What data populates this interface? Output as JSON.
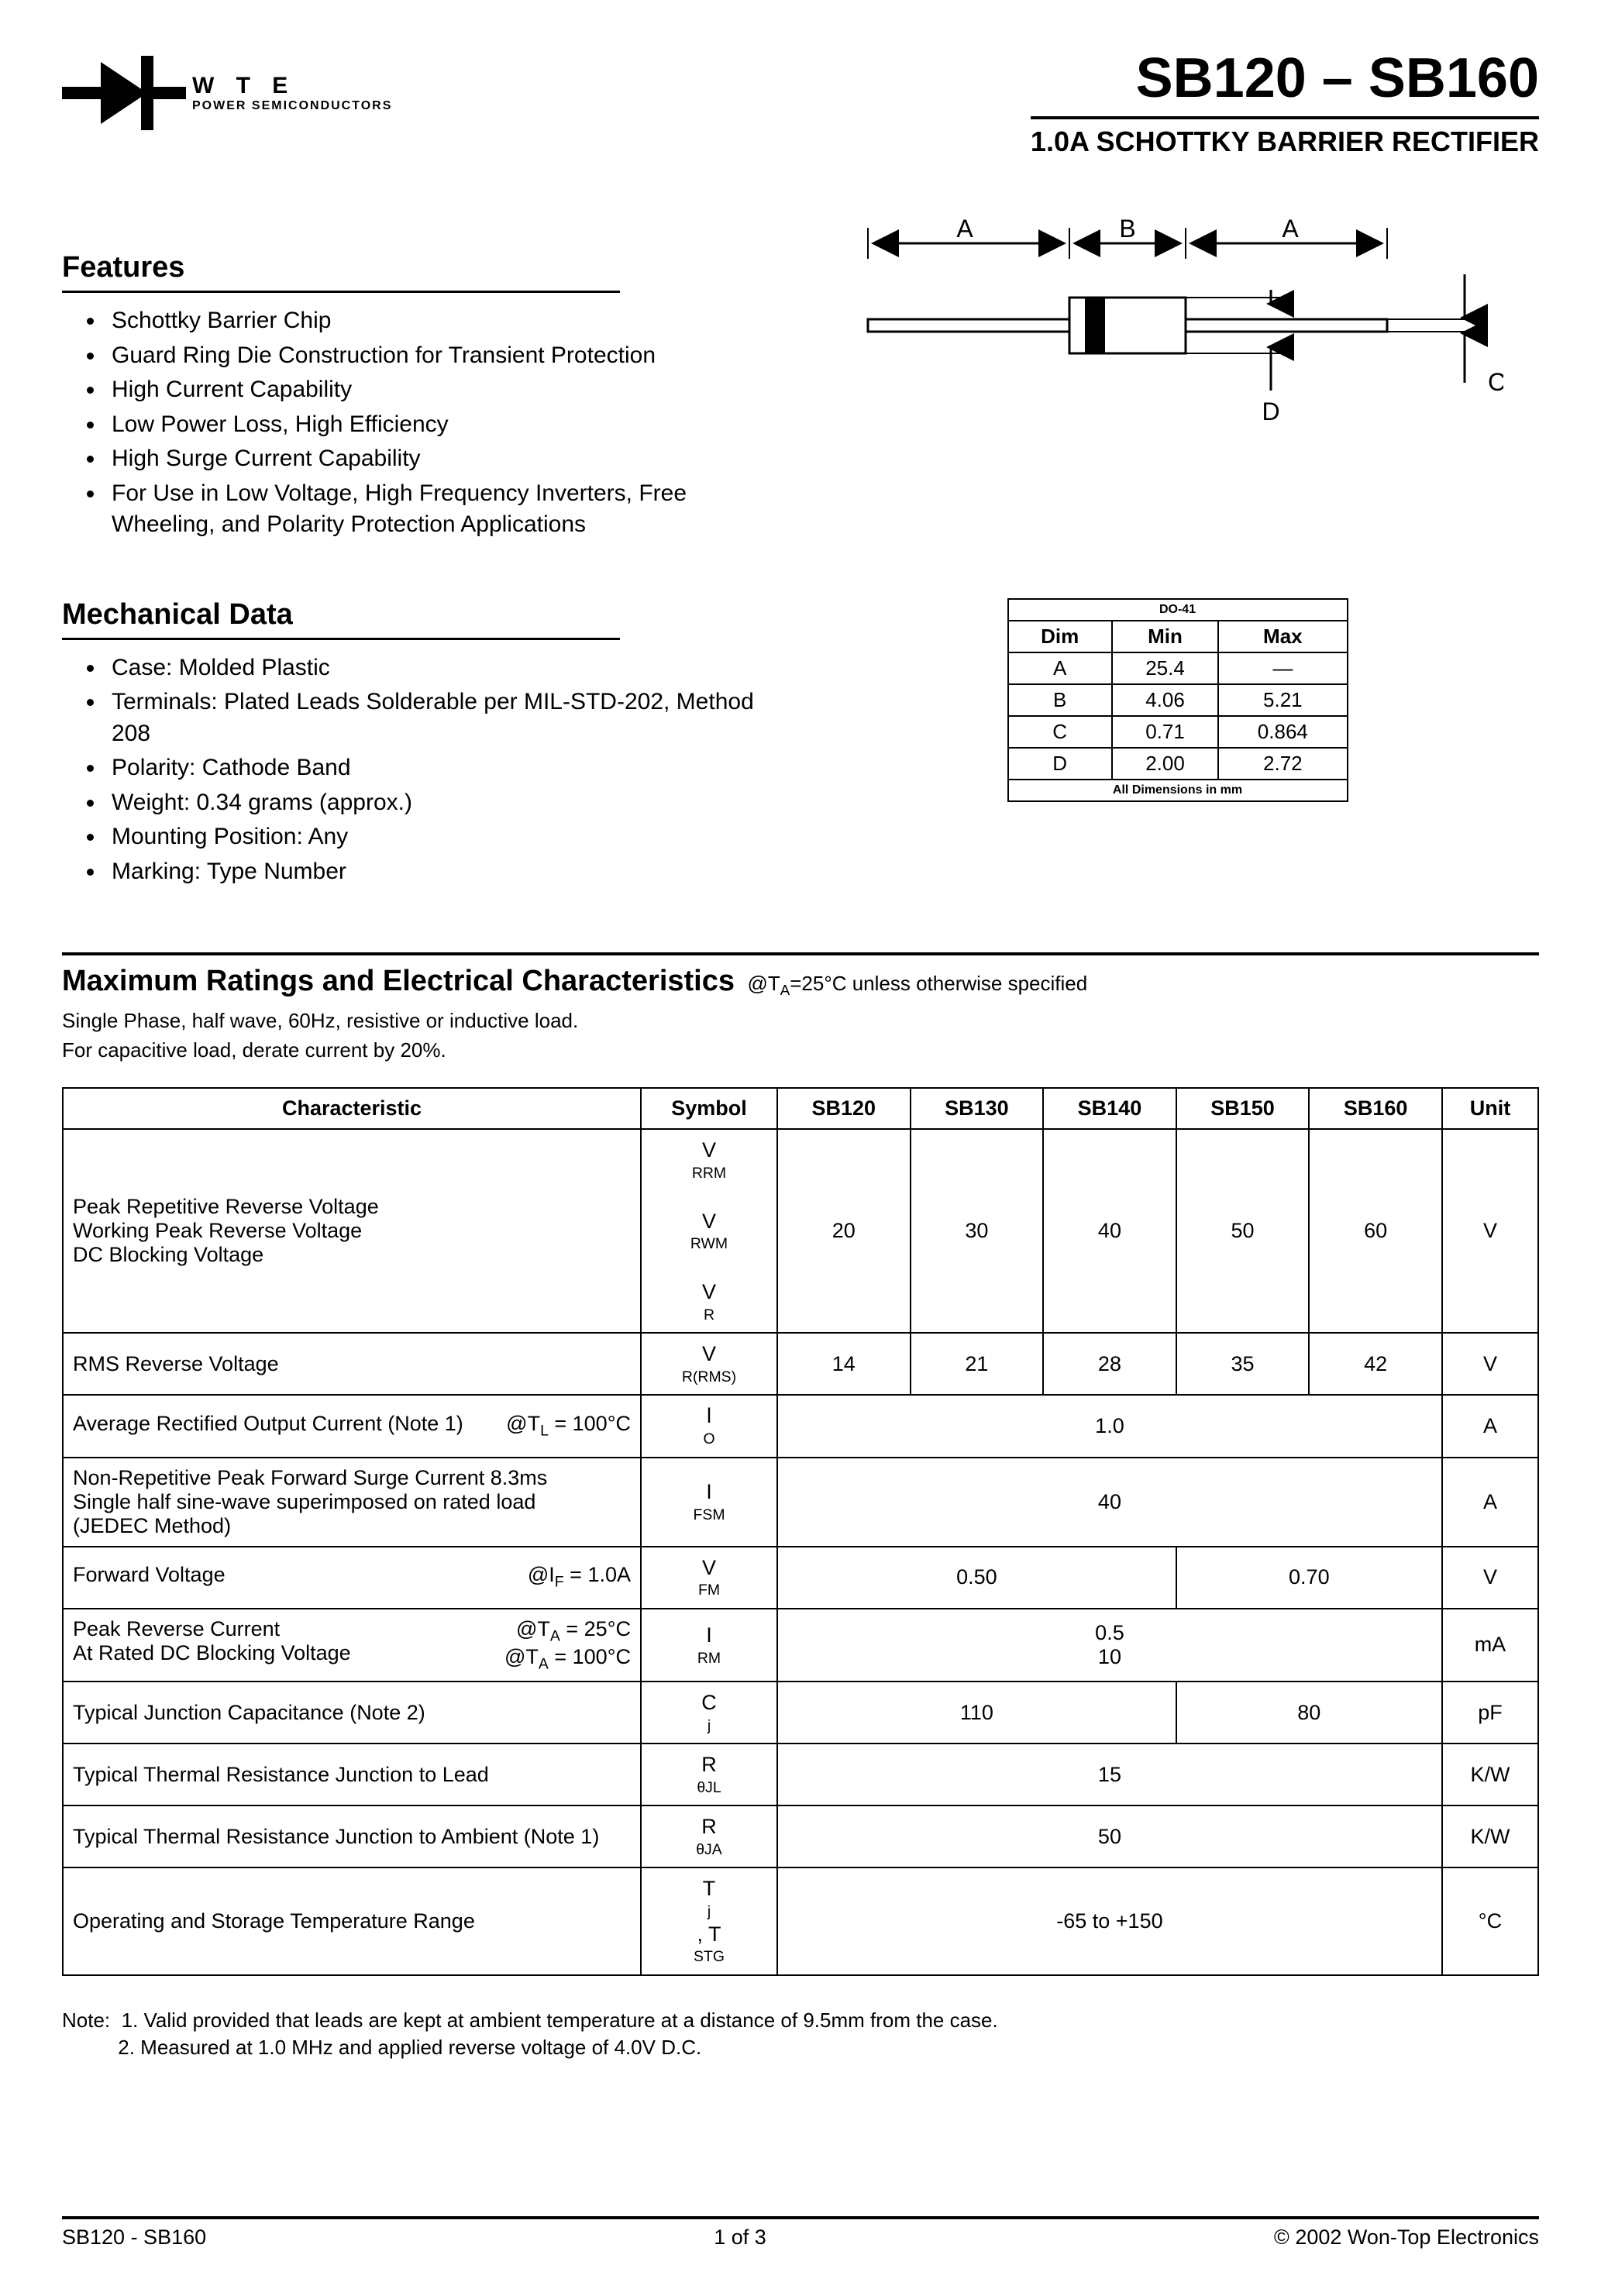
{
  "header": {
    "company_top": "W T E",
    "company_bottom": "POWER SEMICONDUCTORS",
    "title": "SB120 – SB160",
    "subtitle": "1.0A SCHOTTKY BARRIER RECTIFIER"
  },
  "features": {
    "heading": "Features",
    "items": [
      "Schottky Barrier Chip",
      "Guard Ring Die Construction for Transient Protection",
      "High Current Capability",
      "Low Power Loss, High Efficiency",
      "High Surge Current Capability",
      "For Use in Low Voltage, High Frequency Inverters, Free Wheeling, and Polarity Protection Applications"
    ]
  },
  "diagram": {
    "label_A": "A",
    "label_B": "B",
    "label_C": "C",
    "label_D": "D"
  },
  "mechanical": {
    "heading": "Mechanical Data",
    "items": [
      "Case: Molded Plastic",
      "Terminals: Plated Leads Solderable per MIL-STD-202, Method 208",
      "Polarity: Cathode Band",
      "Weight: 0.34 grams (approx.)",
      "Mounting Position: Any",
      "Marking: Type Number"
    ]
  },
  "dim_table": {
    "title": "DO-41",
    "headers": [
      "Dim",
      "Min",
      "Max"
    ],
    "rows": [
      [
        "A",
        "25.4",
        "—"
      ],
      [
        "B",
        "4.06",
        "5.21"
      ],
      [
        "C",
        "0.71",
        "0.864"
      ],
      [
        "D",
        "2.00",
        "2.72"
      ]
    ],
    "footer": "All Dimensions in mm"
  },
  "ratings_section": {
    "heading": "Maximum Ratings and Electrical Characteristics",
    "condition": "@TA=25°C unless otherwise specified",
    "note1": "Single Phase, half wave, 60Hz, resistive or inductive load.",
    "note2": "For capacitive load, derate current by 20%."
  },
  "ratings_table": {
    "headers": [
      "Characteristic",
      "Symbol",
      "SB120",
      "SB130",
      "SB140",
      "SB150",
      "SB160",
      "Unit"
    ],
    "rows": [
      {
        "char_lines": [
          "Peak Repetitive Reverse Voltage",
          "Working Peak Reverse Voltage",
          "DC Blocking Voltage"
        ],
        "cond_lines": [],
        "symbol_html": "V<span class='sub'>RRM</span><br>V<span class='sub'>RWM</span><br>V<span class='sub'>R</span>",
        "cells": [
          [
            "20"
          ],
          [
            "30"
          ],
          [
            "40"
          ],
          [
            "50"
          ],
          [
            "60"
          ]
        ],
        "unit": "V"
      },
      {
        "char_lines": [
          "RMS Reverse Voltage"
        ],
        "cond_lines": [],
        "symbol_html": "V<span class='sub'>R(RMS)</span>",
        "cells": [
          [
            "14"
          ],
          [
            "21"
          ],
          [
            "28"
          ],
          [
            "35"
          ],
          [
            "42"
          ]
        ],
        "unit": "V"
      },
      {
        "char_lines": [
          "Average Rectified Output Current   (Note 1)"
        ],
        "cond_lines": [
          "@T<span class='sub'>L</span> = 100°C"
        ],
        "symbol_html": "l<span class='sub'>O</span>",
        "cells": [
          [
            {
              "span": 5,
              "text": "1.0"
            }
          ]
        ],
        "unit": "A"
      },
      {
        "char_lines": [
          "Non-Repetitive Peak Forward Surge Current 8.3ms",
          "Single half sine-wave superimposed on rated load",
          "(JEDEC Method)"
        ],
        "cond_lines": [],
        "symbol_html": "I<span class='sub'>FSM</span>",
        "cells": [
          [
            {
              "span": 5,
              "text": "40"
            }
          ]
        ],
        "unit": "A"
      },
      {
        "char_lines": [
          "Forward Voltage"
        ],
        "cond_lines": [
          "@I<span class='sub'>F</span> = 1.0A"
        ],
        "symbol_html": "V<span class='sub'>FM</span>",
        "cells": [
          [
            {
              "span": 3,
              "text": "0.50"
            }
          ],
          [
            {
              "span": 2,
              "text": "0.70"
            }
          ]
        ],
        "unit": "V"
      },
      {
        "char_lines": [
          "Peak Reverse Current",
          "At Rated DC Blocking Voltage"
        ],
        "cond_lines": [
          "@T<span class='sub'>A</span> = 25°C",
          "@T<span class='sub'>A</span> = 100°C"
        ],
        "symbol_html": "I<span class='sub'>RM</span>",
        "cells": [
          [
            {
              "span": 5,
              "text": "0.5<br>10"
            }
          ]
        ],
        "unit": "mA"
      },
      {
        "char_lines": [
          "Typical Junction Capacitance (Note 2)"
        ],
        "cond_lines": [],
        "symbol_html": "C<span class='sub'>j</span>",
        "cells": [
          [
            {
              "span": 3,
              "text": "110"
            }
          ],
          [
            {
              "span": 2,
              "text": "80"
            }
          ]
        ],
        "unit": "pF"
      },
      {
        "char_lines": [
          "Typical Thermal Resistance Junction to Lead"
        ],
        "cond_lines": [],
        "symbol_html": "R<span class='sub'>θJL</span>",
        "cells": [
          [
            {
              "span": 5,
              "text": "15"
            }
          ]
        ],
        "unit": "K/W"
      },
      {
        "char_lines": [
          "Typical Thermal Resistance Junction to Ambient (Note 1)"
        ],
        "cond_lines": [],
        "symbol_html": "R<span class='sub'>θJA</span>",
        "cells": [
          [
            {
              "span": 5,
              "text": "50"
            }
          ]
        ],
        "unit": "K/W"
      },
      {
        "char_lines": [
          "Operating and Storage Temperature Range"
        ],
        "cond_lines": [],
        "symbol_html": "T<span class='sub'>j</span>, T<span class='sub'>STG</span>",
        "cells": [
          [
            {
              "span": 5,
              "text": "-65 to +150"
            }
          ]
        ],
        "unit": "°C"
      }
    ]
  },
  "notes": {
    "label": "Note:",
    "n1": "1. Valid provided that leads are kept at ambient temperature at a distance of 9.5mm from the case.",
    "n2": "2. Measured at 1.0 MHz and applied reverse voltage of 4.0V D.C."
  },
  "footer": {
    "left": "SB120 - SB160",
    "center": "1 of 3",
    "right": "© 2002 Won-Top Electronics"
  }
}
